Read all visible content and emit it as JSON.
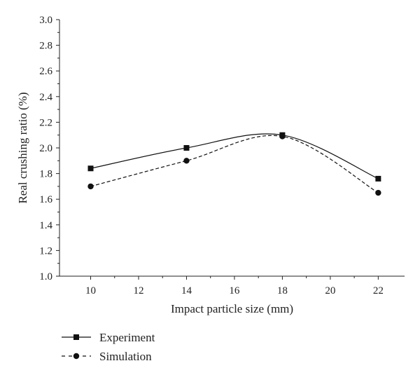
{
  "chart_data": {
    "type": "line",
    "title": "",
    "xlabel": "Impact particle size (mm)",
    "ylabel": "Real crushing ratio (%)",
    "xlim": [
      8.7,
      23.1
    ],
    "ylim": [
      1.0,
      3.0
    ],
    "x_ticks": [
      "10",
      "12",
      "14",
      "16",
      "18",
      "20",
      "22"
    ],
    "y_ticks": [
      "1.0",
      "1.2",
      "1.4",
      "1.6",
      "1.8",
      "2.0",
      "2.2",
      "2.4",
      "2.6",
      "2.8",
      "3.0"
    ],
    "grid": false,
    "legend_position": "bottom-left",
    "series": [
      {
        "name": "Experiment",
        "marker": "square",
        "line_style": "solid",
        "color": "#111111",
        "x": [
          10,
          14,
          18,
          22
        ],
        "y": [
          1.84,
          2.0,
          2.1,
          1.76
        ]
      },
      {
        "name": "Simulation",
        "marker": "circle",
        "line_style": "dashed",
        "color": "#111111",
        "x": [
          10,
          14,
          18,
          22
        ],
        "y": [
          1.7,
          1.9,
          2.09,
          1.65
        ]
      }
    ]
  }
}
